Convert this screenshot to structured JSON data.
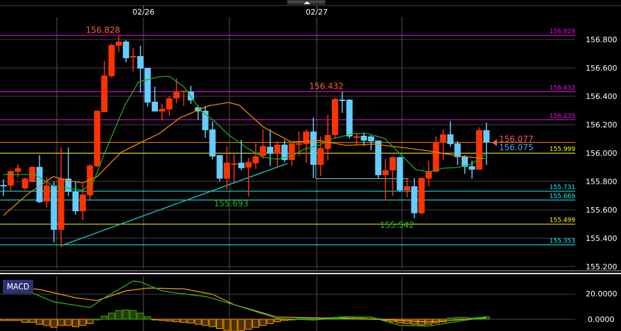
{
  "header": {
    "collapse_icon": "triangle-up-icon",
    "dates": [
      "02/26",
      "02/27"
    ]
  },
  "price_axis": {
    "labels": [
      "156.800",
      "156.600",
      "156.400",
      "156.200",
      "156.000",
      "155.800",
      "155.600",
      "155.400",
      "155.200"
    ]
  },
  "macd_axis": {
    "labels": [
      "20.0000",
      "0.0000"
    ]
  },
  "indicator_label": "MACD",
  "colors": {
    "up": "#ff3300",
    "down": "#66ccff",
    "ma_short": "#22aa22",
    "ma_long": "#ee8800",
    "macd": "#33bb22",
    "signal": "#ff9900",
    "background": "#000000"
  },
  "levels": [
    {
      "value": "156.829",
      "color": "#ff00ff"
    },
    {
      "value": "156.432",
      "color": "#ff00ff"
    },
    {
      "value": "156.235",
      "color": "#ff00ff"
    },
    {
      "value": "155.999",
      "color": "#ffff00"
    },
    {
      "value": "155.731",
      "color": "#00ffff"
    },
    {
      "value": "155.669",
      "color": "#00ffff"
    },
    {
      "value": "155.499",
      "color": "#ffff00"
    },
    {
      "value": "155.353",
      "color": "#00ffff"
    }
  ],
  "current_price_line": {
    "value": "156.075",
    "color": "#ff8800"
  },
  "quotes": {
    "ask": "156.077",
    "bid": "156.075",
    "ask_color": "#ff5566",
    "bid_color": "#33aaff"
  },
  "annotations": [
    {
      "text": "156.828",
      "color": "#ff6622",
      "candle": 16,
      "kind": "high"
    },
    {
      "text": "156.432",
      "color": "#ff6622",
      "candle": 47,
      "kind": "high"
    },
    {
      "text": "155.693",
      "color": "#22bb22",
      "candle": 34,
      "kind": "low"
    },
    {
      "text": "155.542",
      "color": "#22bb22",
      "candle": 57,
      "kind": "low"
    }
  ],
  "chart_data": {
    "type": "candlestick",
    "x_ticks": [
      "02/26",
      "02/27"
    ],
    "ylim": [
      155.2,
      156.9
    ],
    "grid": true,
    "ohlc": [
      [
        155.775,
        155.815,
        155.698,
        155.77
      ],
      [
        155.771,
        155.88,
        155.732,
        155.873
      ],
      [
        155.868,
        155.922,
        155.829,
        155.893
      ],
      [
        155.751,
        155.829,
        155.741,
        155.82
      ],
      [
        155.795,
        155.907,
        155.795,
        155.902
      ],
      [
        155.902,
        155.985,
        155.649,
        155.654
      ],
      [
        155.659,
        155.829,
        155.615,
        155.771
      ],
      [
        155.771,
        155.8,
        155.371,
        155.459
      ],
      [
        155.459,
        156.039,
        155.337,
        155.82
      ],
      [
        155.82,
        156.039,
        155.698,
        155.727
      ],
      [
        155.727,
        155.795,
        155.566,
        155.59
      ],
      [
        155.59,
        155.785,
        155.527,
        155.707
      ],
      [
        155.702,
        155.922,
        155.673,
        155.912
      ],
      [
        155.907,
        156.298,
        155.902,
        156.298
      ],
      [
        156.288,
        156.649,
        156.288,
        156.546
      ],
      [
        156.541,
        156.771,
        156.532,
        156.761
      ],
      [
        156.756,
        156.828,
        156.712,
        156.785
      ],
      [
        156.785,
        156.795,
        156.639,
        156.668
      ],
      [
        156.678,
        156.737,
        156.576,
        156.683
      ],
      [
        156.683,
        156.756,
        156.424,
        156.595
      ],
      [
        156.6,
        156.6,
        156.327,
        156.356
      ],
      [
        156.361,
        156.468,
        156.293,
        156.293
      ],
      [
        156.293,
        156.346,
        156.229,
        156.312
      ],
      [
        156.307,
        156.4,
        156.263,
        156.385
      ],
      [
        156.385,
        156.527,
        156.351,
        156.429
      ],
      [
        156.434,
        156.439,
        156.332,
        156.439
      ],
      [
        156.434,
        156.473,
        156.346,
        156.371
      ],
      [
        156.322,
        156.337,
        156.234,
        156.293
      ],
      [
        156.298,
        156.332,
        156.107,
        156.161
      ],
      [
        156.166,
        156.224,
        155.956,
        155.976
      ],
      [
        155.985,
        155.985,
        155.8,
        155.82
      ],
      [
        155.82,
        156.049,
        155.741,
        155.932
      ],
      [
        155.922,
        155.99,
        155.795,
        155.927
      ],
      [
        155.932,
        156.093,
        155.878,
        155.893
      ],
      [
        155.898,
        155.966,
        155.693,
        155.937
      ],
      [
        155.927,
        156.068,
        155.888,
        155.976
      ],
      [
        155.98,
        156.166,
        155.961,
        156.049
      ],
      [
        156.044,
        156.166,
        155.907,
        155.995
      ],
      [
        155.995,
        156.083,
        155.907,
        156.059
      ],
      [
        156.059,
        156.093,
        155.937,
        155.951
      ],
      [
        155.951,
        156.068,
        155.912,
        156.068
      ],
      [
        156.063,
        156.151,
        155.98,
        156.068
      ],
      [
        156.063,
        156.166,
        155.932,
        156.151
      ],
      [
        156.151,
        156.249,
        155.824,
        155.917
      ],
      [
        155.917,
        156.117,
        155.839,
        156.034
      ],
      [
        156.029,
        156.268,
        155.946,
        156.127
      ],
      [
        156.127,
        156.39,
        156.107,
        156.38
      ],
      [
        156.376,
        156.432,
        156.283,
        156.371
      ],
      [
        156.376,
        156.38,
        156.102,
        156.117
      ],
      [
        156.117,
        156.141,
        156.054,
        156.117
      ],
      [
        156.122,
        156.146,
        156.049,
        156.088
      ],
      [
        156.117,
        156.127,
        156.02,
        156.083
      ],
      [
        156.088,
        156.088,
        155.82,
        155.844
      ],
      [
        155.844,
        155.961,
        155.663,
        155.878
      ],
      [
        155.878,
        155.976,
        155.698,
        155.971
      ],
      [
        155.971,
        155.976,
        155.727,
        155.737
      ],
      [
        155.737,
        155.815,
        155.688,
        155.766
      ],
      [
        155.766,
        155.824,
        155.542,
        155.576
      ],
      [
        155.576,
        155.829,
        155.566,
        155.824
      ],
      [
        155.82,
        155.946,
        155.766,
        155.873
      ],
      [
        155.868,
        156.117,
        155.868,
        156.078
      ],
      [
        156.073,
        156.166,
        155.951,
        156.132
      ],
      [
        156.132,
        156.224,
        156.044,
        156.063
      ],
      [
        156.068,
        156.083,
        155.917,
        155.971
      ],
      [
        155.976,
        155.985,
        155.854,
        155.902
      ],
      [
        155.907,
        155.946,
        155.82,
        155.883
      ],
      [
        155.883,
        156.18,
        155.883,
        156.161
      ],
      [
        156.161,
        156.215,
        155.917,
        156.075
      ]
    ],
    "ma_short": [
      [
        0,
        155.849
      ],
      [
        4.3,
        155.849
      ],
      [
        7,
        155.766
      ],
      [
        11,
        155.737
      ],
      [
        12.5,
        155.8
      ],
      [
        14,
        155.995
      ],
      [
        16.8,
        156.332
      ],
      [
        18.75,
        156.502
      ],
      [
        21.6,
        156.537
      ],
      [
        23,
        156.541
      ],
      [
        25,
        156.468
      ],
      [
        27.4,
        156.298
      ],
      [
        29.3,
        156.224
      ],
      [
        31.25,
        156.127
      ],
      [
        34,
        156.029
      ],
      [
        36,
        155.971
      ],
      [
        38,
        155.956
      ],
      [
        40,
        155.98
      ],
      [
        41.8,
        156.029
      ],
      [
        43.75,
        156.054
      ],
      [
        45.7,
        156.102
      ],
      [
        48.6,
        156.137
      ],
      [
        50.5,
        156.137
      ],
      [
        52.9,
        156.102
      ],
      [
        55.3,
        155.98
      ],
      [
        57.2,
        155.883
      ],
      [
        59,
        155.868
      ],
      [
        61,
        155.893
      ],
      [
        63,
        155.898
      ],
      [
        65,
        155.922
      ],
      [
        66.8,
        155.99
      ]
    ],
    "ma_long": [
      [
        0,
        155.561
      ],
      [
        3.4,
        155.712
      ],
      [
        6.9,
        155.834
      ],
      [
        9.1,
        155.805
      ],
      [
        11,
        155.79
      ],
      [
        13,
        155.834
      ],
      [
        16.3,
        156.005
      ],
      [
        19.2,
        156.078
      ],
      [
        21.6,
        156.137
      ],
      [
        24.5,
        156.249
      ],
      [
        28.4,
        156.332
      ],
      [
        31.25,
        156.356
      ],
      [
        32.7,
        156.337
      ],
      [
        36,
        156.185
      ],
      [
        39.9,
        156.078
      ],
      [
        43.75,
        156.088
      ],
      [
        47.6,
        156.054
      ],
      [
        51.4,
        156.063
      ],
      [
        55.3,
        156.039
      ],
      [
        59,
        156.015
      ],
      [
        63,
        155.98
      ],
      [
        66.8,
        155.961
      ]
    ],
    "trendlines": [
      {
        "from": [
          8,
          155.347
        ],
        "to": [
          39.4,
          155.927
        ],
        "color": "#22bbbb"
      },
      {
        "from": [
          43.3,
          155.82
        ],
        "to": [
          56.2,
          155.82
        ],
        "color": "#669999"
      }
    ],
    "macd": {
      "ylim": [
        -9.5,
        35
      ],
      "histogram": [
        -1,
        -1,
        -1,
        -2.5,
        -2.5,
        -4,
        -5,
        -6.5,
        -5,
        -5,
        -6,
        -5,
        -3.5,
        0,
        2.5,
        5,
        7,
        7.5,
        7,
        5,
        2,
        -0.5,
        -1,
        -1.5,
        -2,
        -2.5,
        -3,
        -4,
        -5,
        -6,
        -7.5,
        -9,
        -9.5,
        -9,
        -8,
        -6.5,
        -5,
        -3.5,
        -2,
        -1,
        -0.5,
        0.5,
        1,
        1,
        0.5,
        1,
        1.5,
        2,
        2,
        1.5,
        1,
        0.5,
        0.5,
        -1,
        -2,
        -3,
        -3.5,
        -4,
        -4.5,
        -4,
        -3,
        -2,
        1,
        1.5,
        1.5,
        1,
        1.5,
        2
      ],
      "macd_line": [
        [
          0,
          25.6
        ],
        [
          4,
          21.1
        ],
        [
          7,
          13.9
        ],
        [
          12,
          9.4
        ],
        [
          14,
          17.2
        ],
        [
          18,
          30.6
        ],
        [
          19,
          30
        ],
        [
          22,
          22.8
        ],
        [
          24,
          21
        ],
        [
          28,
          18.3
        ],
        [
          32,
          11.7
        ],
        [
          38,
          0.6
        ],
        [
          43,
          -0.6
        ],
        [
          48,
          1.7
        ],
        [
          51,
          1.7
        ],
        [
          55,
          -5
        ],
        [
          59,
          -5.5
        ],
        [
          63,
          -1.7
        ],
        [
          67,
          1.7
        ]
      ],
      "signal_line": [
        [
          0,
          26.7
        ],
        [
          5,
          23.9
        ],
        [
          10,
          17.2
        ],
        [
          13,
          15
        ],
        [
          17,
          22.8
        ],
        [
          20,
          25
        ],
        [
          25,
          24.4
        ],
        [
          29,
          20
        ],
        [
          32,
          11.7
        ],
        [
          38,
          1.7
        ],
        [
          48,
          0.6
        ],
        [
          54,
          -0.6
        ],
        [
          59,
          -2.2
        ],
        [
          67,
          1.1
        ]
      ]
    }
  }
}
